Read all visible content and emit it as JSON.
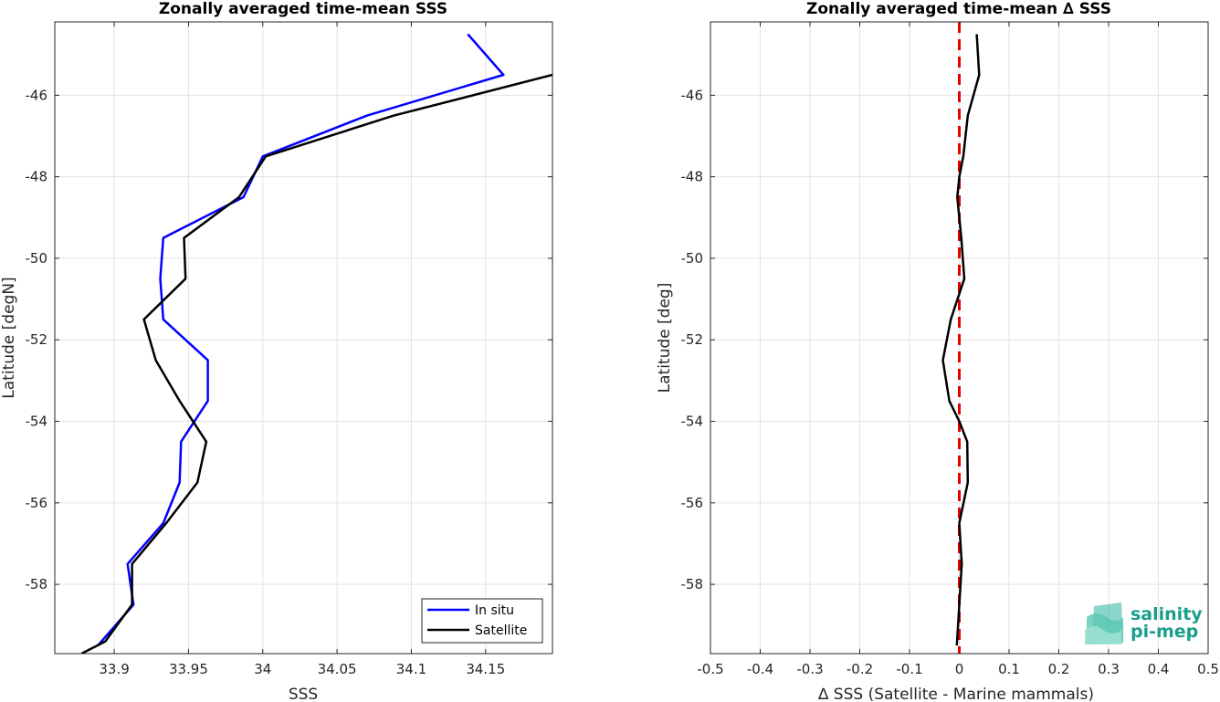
{
  "chart_data": [
    {
      "type": "line",
      "title": "Zonally averaged time-mean SSS",
      "xlabel": "SSS",
      "ylabel": "Latitude [degN]",
      "xlim": [
        33.86,
        34.195
      ],
      "ylim": [
        -59.7,
        -44.2
      ],
      "xticks": [
        33.9,
        33.95,
        34.0,
        34.05,
        34.1,
        34.15
      ],
      "xticklabels": [
        "33.9",
        "33.95",
        "34",
        "34.05",
        "34.1",
        "34.15"
      ],
      "yticks": [
        -46,
        -48,
        -50,
        -52,
        -54,
        -56,
        -58
      ],
      "yticklabels": [
        "-46",
        "-48",
        "-50",
        "-52",
        "-54",
        "-56",
        "-58"
      ],
      "grid": true,
      "legend_position": "bottom-right",
      "series": [
        {
          "name": "In situ",
          "color": "#0000ff",
          "points": [
            [
              34.138,
              -44.5
            ],
            [
              34.162,
              -45.5
            ],
            [
              34.07,
              -46.5
            ],
            [
              34.0,
              -47.5
            ],
            [
              33.987,
              -48.5
            ],
            [
              33.933,
              -49.5
            ],
            [
              33.931,
              -50.5
            ],
            [
              33.933,
              -51.5
            ],
            [
              33.963,
              -52.5
            ],
            [
              33.963,
              -53.5
            ],
            [
              33.945,
              -54.5
            ],
            [
              33.944,
              -55.5
            ],
            [
              33.933,
              -56.5
            ],
            [
              33.909,
              -57.5
            ],
            [
              33.913,
              -58.5
            ],
            [
              33.889,
              -59.5
            ]
          ]
        },
        {
          "name": "Satellite",
          "color": "#000000",
          "points": [
            [
              34.195,
              -45.5
            ],
            [
              34.088,
              -46.5
            ],
            [
              34.002,
              -47.5
            ],
            [
              33.984,
              -48.5
            ],
            [
              33.947,
              -49.5
            ],
            [
              33.948,
              -50.5
            ],
            [
              33.92,
              -51.5
            ],
            [
              33.928,
              -52.5
            ],
            [
              33.944,
              -53.5
            ],
            [
              33.962,
              -54.5
            ],
            [
              33.956,
              -55.5
            ],
            [
              33.935,
              -56.5
            ],
            [
              33.912,
              -57.5
            ],
            [
              33.912,
              -58.5
            ],
            [
              33.894,
              -59.4
            ],
            [
              33.878,
              -59.7
            ]
          ]
        }
      ]
    },
    {
      "type": "line",
      "title": "Zonally averaged time-mean ∆ SSS",
      "xlabel": "∆ SSS (Satellite - Marine mammals)",
      "ylabel": "Latitude [deg]",
      "xlim": [
        -0.5,
        0.5
      ],
      "ylim": [
        -59.7,
        -44.2
      ],
      "xticks": [
        -0.5,
        -0.4,
        -0.3,
        -0.2,
        -0.1,
        0,
        0.1,
        0.2,
        0.3,
        0.4,
        0.5
      ],
      "xticklabels": [
        "-0.5",
        "-0.4",
        "-0.3",
        "-0.2",
        "-0.1",
        "0",
        "0.1",
        "0.2",
        "0.3",
        "0.4",
        "0.5"
      ],
      "yticks": [
        -46,
        -48,
        -50,
        -52,
        -54,
        -56,
        -58
      ],
      "yticklabels": [
        "-46",
        "-48",
        "-50",
        "-52",
        "-54",
        "-56",
        "-58"
      ],
      "grid": true,
      "reference_line": {
        "x": 0,
        "color": "#e60000",
        "style": "dashed"
      },
      "series": [
        {
          "color": "#000000",
          "points": [
            [
              0.035,
              -44.5
            ],
            [
              0.04,
              -45.5
            ],
            [
              0.017,
              -46.5
            ],
            [
              0.008,
              -47.5
            ],
            [
              0.0,
              -48.0
            ],
            [
              -0.004,
              -48.5
            ],
            [
              0.004,
              -49.5
            ],
            [
              0.01,
              -50.5
            ],
            [
              -0.017,
              -51.5
            ],
            [
              -0.033,
              -52.5
            ],
            [
              -0.02,
              -53.5
            ],
            [
              0.0,
              -54.0
            ],
            [
              0.016,
              -54.5
            ],
            [
              0.017,
              -55.5
            ],
            [
              0.0,
              -56.5
            ],
            [
              0.005,
              -57.5
            ],
            [
              0.0,
              -58.5
            ],
            [
              -0.005,
              -59.5
            ]
          ]
        }
      ]
    }
  ],
  "logo": {
    "line1": "salinity",
    "line2": "pi-mep",
    "color": "#1a9e8c"
  }
}
